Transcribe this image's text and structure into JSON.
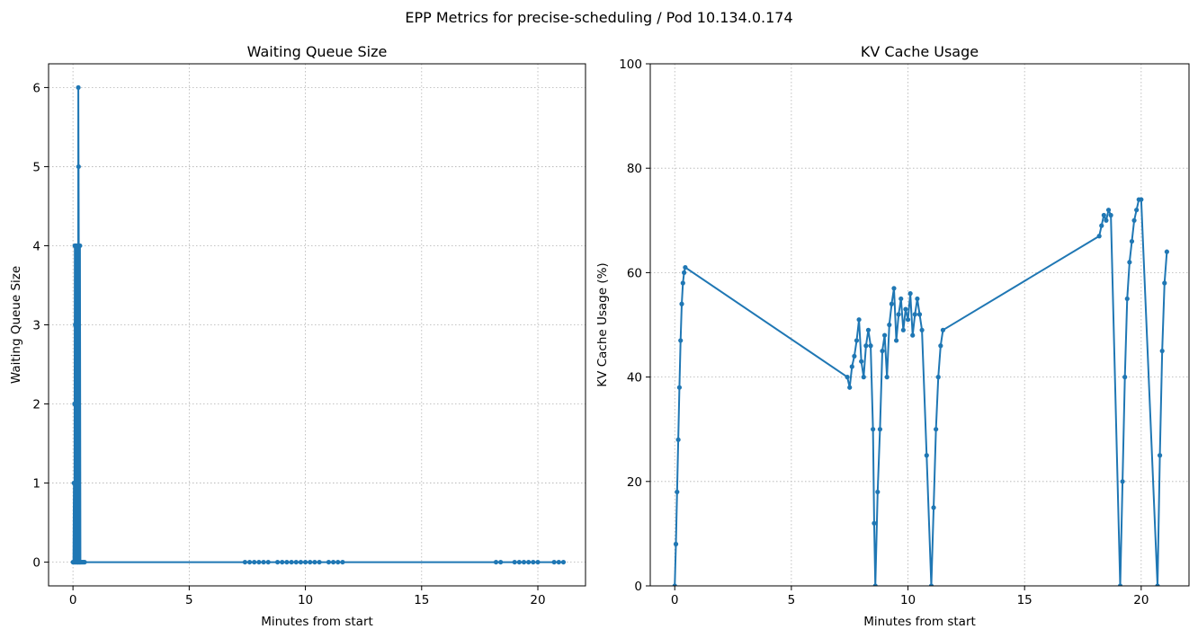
{
  "suptitle": "EPP Metrics for precise-scheduling / Pod 10.134.0.174",
  "colors": {
    "series": "#1f77b4",
    "grid": "#b0b0b0",
    "axes": "#000000"
  },
  "chart_data": [
    {
      "type": "line",
      "title": "Waiting Queue Size",
      "xlabel": "Minutes from start",
      "ylabel": "Waiting Queue Size",
      "xlim": [
        -1.05,
        22.05
      ],
      "ylim": [
        -0.3,
        6.3
      ],
      "xticks": [
        0,
        5,
        10,
        15,
        20
      ],
      "xtick_labels": [
        "0",
        "5",
        "10",
        "15",
        "20"
      ],
      "yticks": [
        0,
        1,
        2,
        3,
        4,
        5,
        6
      ],
      "ytick_labels": [
        "0",
        "1",
        "2",
        "3",
        "4",
        "5",
        "6"
      ],
      "grid": true,
      "marker": "circle",
      "series": [
        {
          "values_xy": [
            [
              0.0,
              0
            ],
            [
              0.02,
              0
            ],
            [
              0.04,
              1
            ],
            [
              0.06,
              0
            ],
            [
              0.07,
              2
            ],
            [
              0.08,
              4
            ],
            [
              0.09,
              0
            ],
            [
              0.1,
              3
            ],
            [
              0.11,
              4
            ],
            [
              0.12,
              0
            ],
            [
              0.13,
              2
            ],
            [
              0.14,
              4
            ],
            [
              0.15,
              1
            ],
            [
              0.16,
              3
            ],
            [
              0.17,
              0
            ],
            [
              0.18,
              4
            ],
            [
              0.19,
              0
            ],
            [
              0.2,
              2
            ],
            [
              0.22,
              0
            ],
            [
              0.23,
              6
            ],
            [
              0.24,
              5
            ],
            [
              0.25,
              4
            ],
            [
              0.26,
              0
            ],
            [
              0.28,
              0
            ],
            [
              0.3,
              4
            ],
            [
              0.32,
              0
            ],
            [
              0.35,
              0
            ],
            [
              0.4,
              0
            ],
            [
              0.45,
              0
            ],
            [
              0.5,
              0
            ],
            [
              7.4,
              0
            ],
            [
              7.6,
              0
            ],
            [
              7.8,
              0
            ],
            [
              8.0,
              0
            ],
            [
              8.2,
              0
            ],
            [
              8.4,
              0
            ],
            [
              8.8,
              0
            ],
            [
              9.0,
              0
            ],
            [
              9.2,
              0
            ],
            [
              9.4,
              0
            ],
            [
              9.6,
              0
            ],
            [
              9.8,
              0
            ],
            [
              10.0,
              0
            ],
            [
              10.2,
              0
            ],
            [
              10.4,
              0
            ],
            [
              10.6,
              0
            ],
            [
              11.0,
              0
            ],
            [
              11.2,
              0
            ],
            [
              11.4,
              0
            ],
            [
              11.6,
              0
            ],
            [
              18.2,
              0
            ],
            [
              18.4,
              0
            ],
            [
              19.0,
              0
            ],
            [
              19.2,
              0
            ],
            [
              19.4,
              0
            ],
            [
              19.6,
              0
            ],
            [
              19.8,
              0
            ],
            [
              20.0,
              0
            ],
            [
              20.7,
              0
            ],
            [
              20.9,
              0
            ],
            [
              21.1,
              0
            ]
          ]
        }
      ]
    },
    {
      "type": "line",
      "title": "KV Cache Usage",
      "xlabel": "Minutes from start",
      "ylabel": "KV Cache Usage (%)",
      "xlim": [
        -1.05,
        22.05
      ],
      "ylim": [
        0,
        100
      ],
      "xticks": [
        0,
        5,
        10,
        15,
        20
      ],
      "xtick_labels": [
        "0",
        "5",
        "10",
        "15",
        "20"
      ],
      "yticks": [
        0,
        20,
        40,
        60,
        80,
        100
      ],
      "ytick_labels": [
        "0",
        "20",
        "40",
        "60",
        "80",
        "100"
      ],
      "grid": true,
      "marker": "circle",
      "series": [
        {
          "values_xy": [
            [
              0.0,
              0
            ],
            [
              0.05,
              8
            ],
            [
              0.1,
              18
            ],
            [
              0.15,
              28
            ],
            [
              0.2,
              38
            ],
            [
              0.25,
              47
            ],
            [
              0.3,
              54
            ],
            [
              0.35,
              58
            ],
            [
              0.4,
              60
            ],
            [
              0.45,
              61
            ],
            [
              7.4,
              40
            ],
            [
              7.5,
              38
            ],
            [
              7.6,
              42
            ],
            [
              7.7,
              44
            ],
            [
              7.8,
              47
            ],
            [
              7.9,
              51
            ],
            [
              8.0,
              43
            ],
            [
              8.1,
              40
            ],
            [
              8.2,
              46
            ],
            [
              8.3,
              49
            ],
            [
              8.4,
              46
            ],
            [
              8.5,
              30
            ],
            [
              8.55,
              12
            ],
            [
              8.6,
              0
            ],
            [
              8.7,
              18
            ],
            [
              8.8,
              30
            ],
            [
              8.9,
              45
            ],
            [
              9.0,
              48
            ],
            [
              9.1,
              40
            ],
            [
              9.2,
              50
            ],
            [
              9.3,
              54
            ],
            [
              9.4,
              57
            ],
            [
              9.5,
              47
            ],
            [
              9.6,
              52
            ],
            [
              9.7,
              55
            ],
            [
              9.8,
              49
            ],
            [
              9.9,
              53
            ],
            [
              10.0,
              51
            ],
            [
              10.1,
              56
            ],
            [
              10.2,
              48
            ],
            [
              10.3,
              52
            ],
            [
              10.4,
              55
            ],
            [
              10.5,
              52
            ],
            [
              10.6,
              49
            ],
            [
              10.8,
              25
            ],
            [
              11.0,
              0
            ],
            [
              11.1,
              15
            ],
            [
              11.2,
              30
            ],
            [
              11.3,
              40
            ],
            [
              11.4,
              46
            ],
            [
              11.5,
              49
            ],
            [
              18.2,
              67
            ],
            [
              18.3,
              69
            ],
            [
              18.4,
              71
            ],
            [
              18.5,
              70
            ],
            [
              18.6,
              72
            ],
            [
              18.7,
              71
            ],
            [
              19.1,
              0
            ],
            [
              19.2,
              20
            ],
            [
              19.3,
              40
            ],
            [
              19.4,
              55
            ],
            [
              19.5,
              62
            ],
            [
              19.6,
              66
            ],
            [
              19.7,
              70
            ],
            [
              19.8,
              72
            ],
            [
              19.9,
              74
            ],
            [
              20.0,
              74
            ],
            [
              20.7,
              0
            ],
            [
              20.8,
              25
            ],
            [
              20.9,
              45
            ],
            [
              21.0,
              58
            ],
            [
              21.1,
              64
            ]
          ]
        }
      ]
    }
  ]
}
